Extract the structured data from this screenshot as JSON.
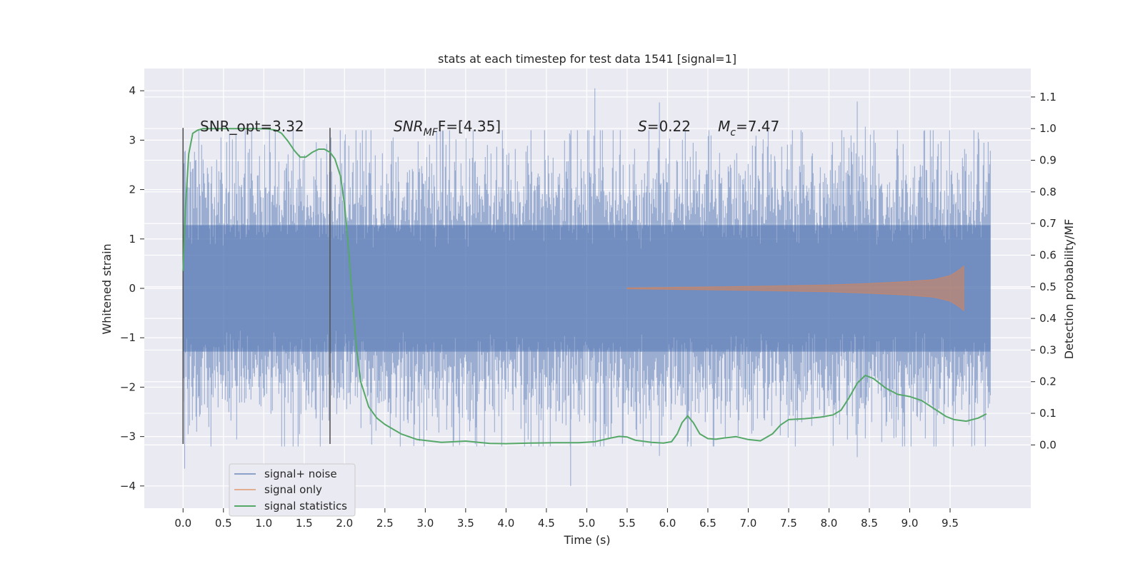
{
  "chart_data": {
    "type": "line",
    "title": "stats at each timestep for test data 1541 [signal=1]",
    "xlabel": "Time (s)",
    "ylabel": "Whitened strain",
    "y2label": "Detection probability/MF",
    "xlim": [
      -0.48,
      10.5
    ],
    "ylim": [
      -4.45,
      4.45
    ],
    "y2lim": [
      -0.2,
      1.19
    ],
    "x_ticks": [
      "0.0",
      "0.5",
      "1.0",
      "1.5",
      "2.0",
      "2.5",
      "3.0",
      "3.5",
      "4.0",
      "4.5",
      "5.0",
      "5.5",
      "6.0",
      "6.5",
      "7.0",
      "7.5",
      "8.0",
      "8.5",
      "9.0",
      "9.5"
    ],
    "y_ticks": [
      "−4",
      "−3",
      "−2",
      "−1",
      "0",
      "1",
      "2",
      "3",
      "4"
    ],
    "y2_ticks": [
      "0.0",
      "0.1",
      "0.2",
      "0.3",
      "0.4",
      "0.5",
      "0.6",
      "0.7",
      "0.8",
      "0.9",
      "1.0",
      "1.1"
    ],
    "grid": true,
    "legend_position": "lower-left",
    "annotations": {
      "snr_opt": "SNR_opt=3.32",
      "snr_mf_main": "SNR",
      "snr_mf_sub": "MF",
      "snr_mf_rest": "F=[4.35]",
      "spin_main": "S",
      "spin_rest": "=0.22",
      "mc_main": "M",
      "mc_sub": "c",
      "mc_rest": "=7.47"
    },
    "vertical_markers_x": [
      0.0,
      1.82
    ],
    "series": [
      {
        "name": "signal+ noise",
        "color": "#4c72b0",
        "kind": "noise",
        "x_range": [
          0.0,
          10.0
        ],
        "core_amplitude": 1.28,
        "peak_range": [
          -3.65,
          4.05
        ]
      },
      {
        "name": "signal only",
        "color": "#dd8452",
        "kind": "chirp",
        "x_range": [
          5.5,
          9.67
        ],
        "envelope": {
          "x": [
            5.5,
            7.0,
            8.0,
            8.5,
            9.0,
            9.3,
            9.5,
            9.6,
            9.67
          ],
          "amp": [
            0.01,
            0.04,
            0.07,
            0.1,
            0.14,
            0.18,
            0.26,
            0.36,
            0.45
          ]
        }
      },
      {
        "name": "signal statistics",
        "color": "#55a868",
        "kind": "line",
        "axis": "right",
        "x": [
          0.0,
          0.03,
          0.07,
          0.12,
          0.18,
          0.25,
          0.35,
          0.5,
          0.7,
          0.9,
          1.05,
          1.15,
          1.22,
          1.3,
          1.38,
          1.45,
          1.52,
          1.6,
          1.68,
          1.75,
          1.82,
          1.88,
          1.95,
          2.0,
          2.05,
          2.1,
          2.15,
          2.2,
          2.3,
          2.4,
          2.5,
          2.7,
          2.9,
          3.2,
          3.5,
          3.8,
          4.0,
          4.3,
          4.6,
          4.9,
          5.1,
          5.3,
          5.4,
          5.5,
          5.6,
          5.8,
          5.95,
          6.05,
          6.12,
          6.18,
          6.25,
          6.32,
          6.4,
          6.5,
          6.6,
          6.7,
          6.85,
          7.0,
          7.15,
          7.3,
          7.4,
          7.5,
          7.7,
          7.9,
          8.05,
          8.15,
          8.25,
          8.35,
          8.45,
          8.55,
          8.7,
          8.85,
          9.0,
          9.15,
          9.3,
          9.45,
          9.55,
          9.7,
          9.85,
          9.95
        ],
        "y": [
          0.55,
          0.75,
          0.92,
          0.985,
          0.995,
          1.0,
          1.0,
          1.0,
          1.0,
          1.0,
          0.999,
          0.995,
          0.985,
          0.96,
          0.93,
          0.91,
          0.91,
          0.925,
          0.935,
          0.935,
          0.925,
          0.905,
          0.85,
          0.76,
          0.62,
          0.45,
          0.3,
          0.2,
          0.12,
          0.085,
          0.065,
          0.035,
          0.017,
          0.008,
          0.012,
          0.005,
          0.004,
          0.006,
          0.007,
          0.007,
          0.01,
          0.022,
          0.027,
          0.025,
          0.015,
          0.008,
          0.006,
          0.01,
          0.035,
          0.07,
          0.092,
          0.07,
          0.035,
          0.02,
          0.018,
          0.022,
          0.026,
          0.017,
          0.013,
          0.035,
          0.063,
          0.08,
          0.083,
          0.088,
          0.095,
          0.11,
          0.15,
          0.195,
          0.22,
          0.21,
          0.18,
          0.16,
          0.153,
          0.14,
          0.115,
          0.09,
          0.08,
          0.075,
          0.085,
          0.098
        ]
      }
    ]
  }
}
